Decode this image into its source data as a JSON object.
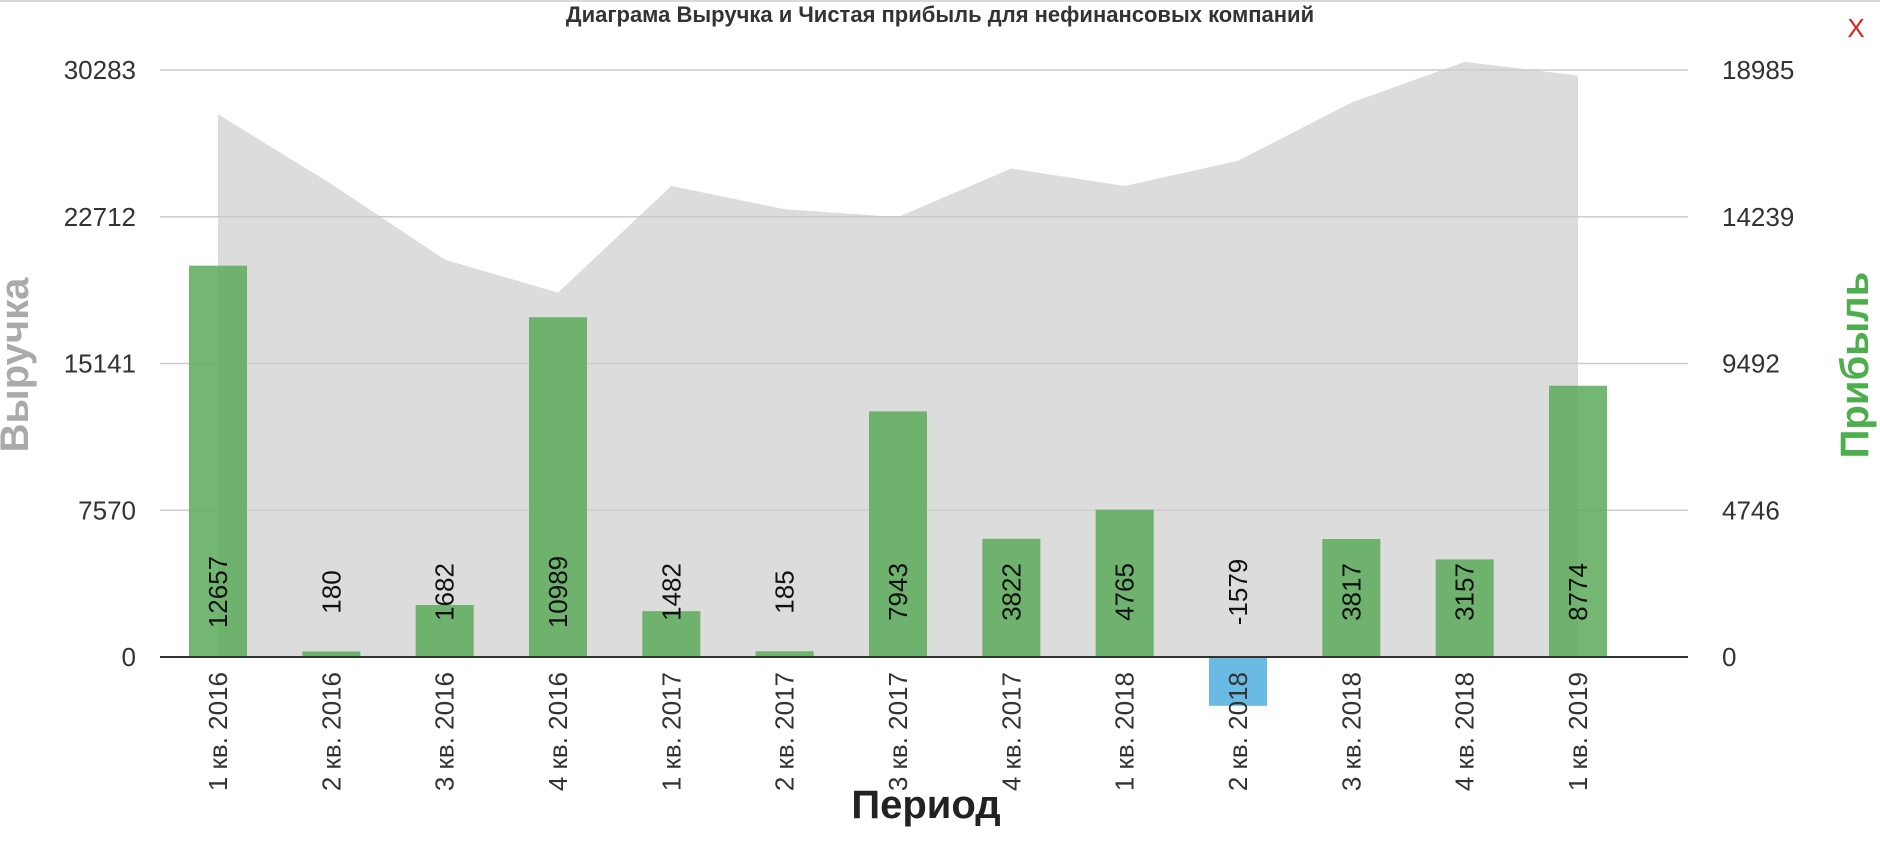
{
  "window": {
    "close_label": "X"
  },
  "colors": {
    "revenue_area": "#dcdcdc",
    "profit_positive": "#5aaa5a",
    "profit_negative": "#5ab4e0",
    "grid": "#cccccc",
    "left_axis_title": "#aaaaaa",
    "right_axis_title": "#4cae4c",
    "close_icon": "#e02020"
  },
  "chart_data": {
    "type": "bar",
    "title": "Диаграма Выручка и Чистая прибыль для нефинансовых компаний",
    "xlabel": "Период",
    "ylabel_left": "Выручка",
    "ylabel_right": "Прибыль",
    "categories": [
      "1 кв. 2016",
      "2 кв. 2016",
      "3 кв. 2016",
      "4 кв. 2016",
      "1 кв. 2017",
      "2 кв. 2017",
      "3 кв. 2017",
      "4 кв. 2017",
      "1 кв. 2018",
      "2 кв. 2018",
      "3 кв. 2018",
      "4 кв. 2018",
      "1 кв. 2019"
    ],
    "left_ticks": [
      "0",
      "7570",
      "15141",
      "22712",
      "30283"
    ],
    "right_ticks": [
      "0",
      "4746",
      "9492",
      "14239",
      "18985"
    ],
    "ylim_left": [
      0,
      30283
    ],
    "ylim_right": [
      0,
      18985
    ],
    "grid": true,
    "series": [
      {
        "name": "Выручка",
        "type": "area",
        "axis": "left",
        "values": [
          28000,
          24400,
          20500,
          18800,
          24300,
          23100,
          22700,
          25200,
          24300,
          25600,
          28600,
          30700,
          30000
        ]
      },
      {
        "name": "Прибыль",
        "type": "bar",
        "axis": "right",
        "values": [
          12657,
          180,
          1682,
          10989,
          1482,
          185,
          7943,
          3822,
          4765,
          -1579,
          3817,
          3157,
          8774
        ],
        "labels": [
          "12657",
          "180",
          "1682",
          "10989",
          "1482",
          "185",
          "7943",
          "3822",
          "4765",
          "-1579",
          "3817",
          "3157",
          "8774"
        ]
      }
    ]
  }
}
